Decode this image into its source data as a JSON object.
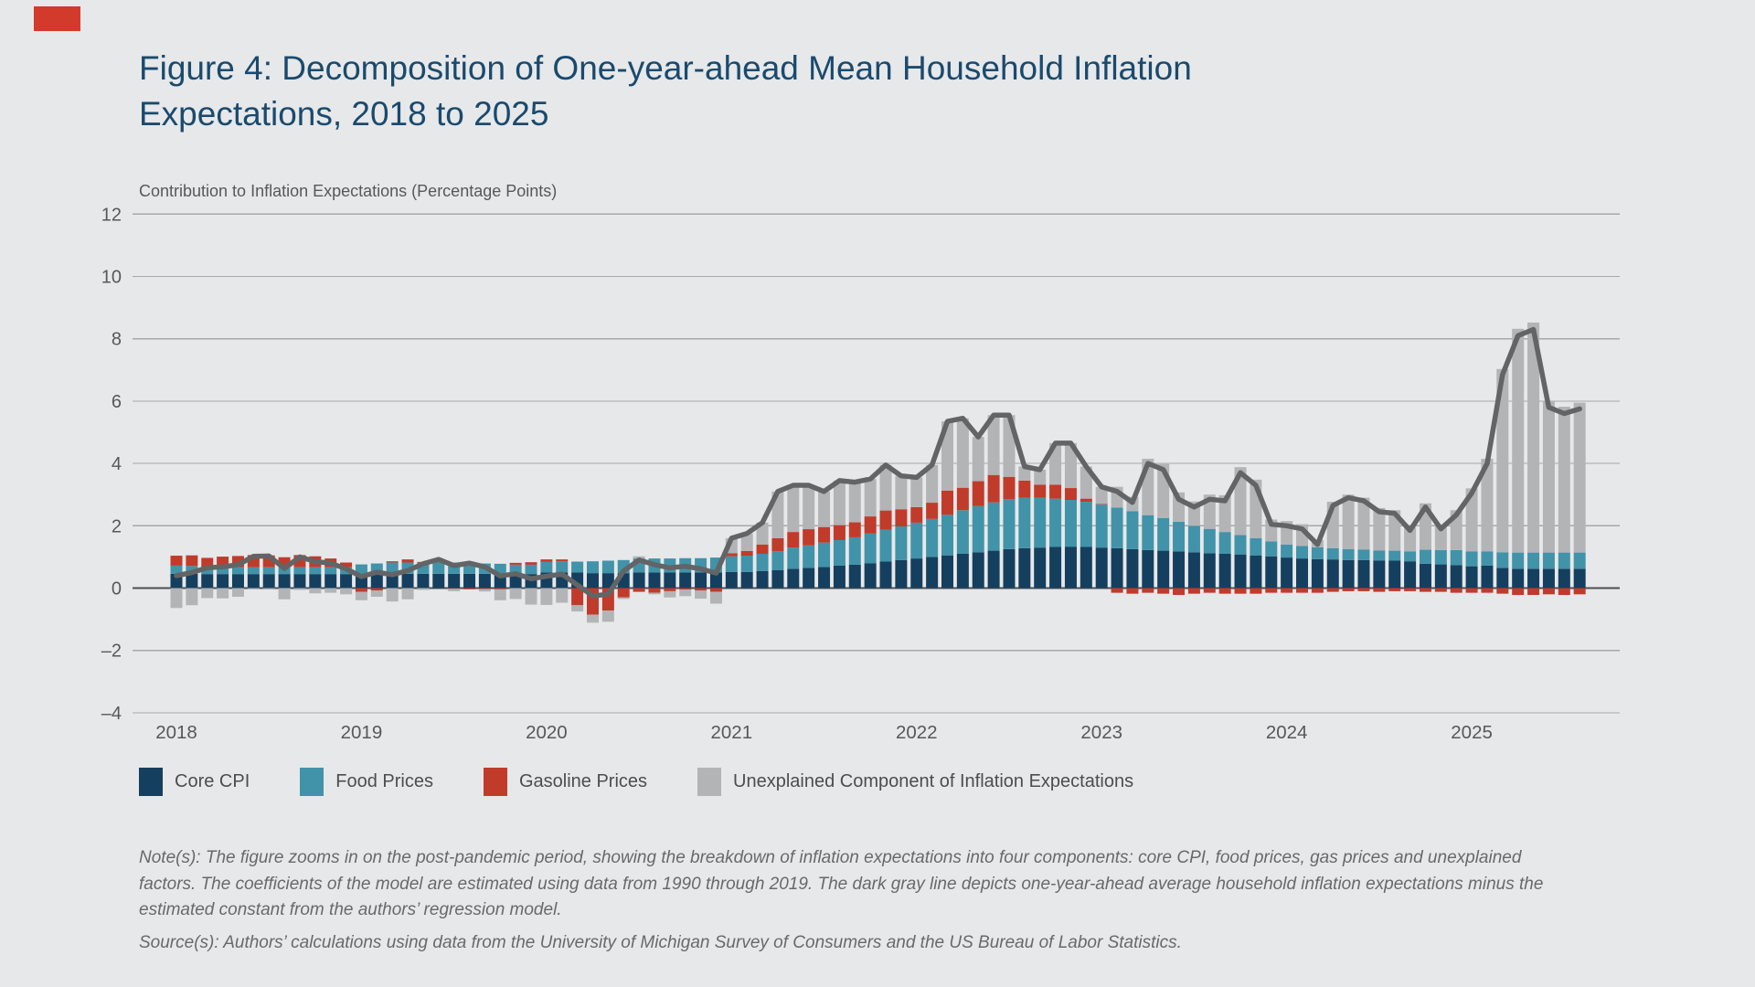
{
  "page": {
    "background": "#e7e8e9"
  },
  "brand": {
    "mark": "red-rectangle-logo",
    "color": "#d23a2c"
  },
  "title": {
    "text": "Figure 4: Decomposition of One-year-ahead Mean Household Inflation Expectations, 2018 to 2025",
    "color": "#1a4a6e"
  },
  "subtitle": "Contribution to Inflation Expectations (Percentage Points)",
  "subtitle_color": "#57585a",
  "notes": {
    "note": "Note(s): The figure zooms in on the post-pandemic period, showing the breakdown of inflation expectations into four components: core CPI, food prices, gas prices and unexplained factors. The coefficients of the model are estimated using data from 1990 through 2019. The dark gray line depicts one-year-ahead average household inflation expectations minus the estimated constant from the authors’ regression model.",
    "source": "Source(s): Authors’ calculations using data from the University of Michigan Survey of Consumers and the US Bureau of Labor Statistics."
  },
  "chart_data": {
    "type": "bar",
    "subtype": "stacked-monthly-bars-with-total-line",
    "title": "Contribution to Inflation Expectations (Percentage Points)",
    "x_start": "2018-01",
    "x_end": "2025-08",
    "n_months": 92,
    "xtick_labels": [
      "2018",
      "2019",
      "2020",
      "2021",
      "2022",
      "2023",
      "2024",
      "2025"
    ],
    "ylim": [
      -4,
      12
    ],
    "yticks": [
      12,
      10,
      8,
      6,
      4,
      2,
      0,
      -2,
      -4
    ],
    "grid": true,
    "legend_position": "bottom",
    "axis_label_color": "#57585a",
    "gridline_color": "#a7a8aa",
    "zero_line_color": "#4e4f52",
    "series": [
      {
        "name": "Core CPI",
        "color": "#153f5f",
        "values": [
          0.46,
          0.46,
          0.45,
          0.45,
          0.45,
          0.45,
          0.45,
          0.45,
          0.45,
          0.45,
          0.45,
          0.45,
          0.46,
          0.46,
          0.46,
          0.46,
          0.46,
          0.46,
          0.46,
          0.46,
          0.46,
          0.46,
          0.45,
          0.45,
          0.5,
          0.5,
          0.5,
          0.48,
          0.48,
          0.48,
          0.5,
          0.5,
          0.5,
          0.5,
          0.5,
          0.5,
          0.52,
          0.52,
          0.55,
          0.58,
          0.62,
          0.65,
          0.68,
          0.72,
          0.75,
          0.8,
          0.85,
          0.9,
          0.95,
          1.0,
          1.05,
          1.1,
          1.15,
          1.2,
          1.25,
          1.28,
          1.3,
          1.32,
          1.33,
          1.32,
          1.3,
          1.28,
          1.25,
          1.22,
          1.2,
          1.18,
          1.15,
          1.12,
          1.1,
          1.08,
          1.05,
          1.02,
          0.98,
          0.95,
          0.93,
          0.92,
          0.9,
          0.9,
          0.88,
          0.88,
          0.86,
          0.78,
          0.76,
          0.74,
          0.7,
          0.72,
          0.65,
          0.62,
          0.62,
          0.62,
          0.62,
          0.62
        ]
      },
      {
        "name": "Food Prices",
        "color": "#4193a9",
        "values": [
          0.26,
          0.25,
          0.22,
          0.22,
          0.22,
          0.22,
          0.22,
          0.22,
          0.22,
          0.22,
          0.22,
          0.22,
          0.3,
          0.33,
          0.36,
          0.36,
          0.36,
          0.38,
          0.36,
          0.35,
          0.33,
          0.32,
          0.3,
          0.3,
          0.35,
          0.36,
          0.35,
          0.38,
          0.4,
          0.42,
          0.45,
          0.45,
          0.45,
          0.46,
          0.46,
          0.48,
          0.5,
          0.52,
          0.55,
          0.6,
          0.68,
          0.72,
          0.78,
          0.82,
          0.88,
          0.95,
          1.02,
          1.08,
          1.15,
          1.22,
          1.3,
          1.4,
          1.48,
          1.55,
          1.6,
          1.62,
          1.6,
          1.55,
          1.5,
          1.45,
          1.38,
          1.3,
          1.22,
          1.12,
          1.05,
          0.95,
          0.85,
          0.78,
          0.7,
          0.62,
          0.55,
          0.48,
          0.42,
          0.4,
          0.38,
          0.36,
          0.35,
          0.34,
          0.33,
          0.32,
          0.32,
          0.45,
          0.46,
          0.48,
          0.48,
          0.46,
          0.5,
          0.52,
          0.52,
          0.52,
          0.52,
          0.52
        ]
      },
      {
        "name": "Gasoline Prices",
        "color": "#c13b2b",
        "values": [
          0.32,
          0.34,
          0.3,
          0.34,
          0.36,
          0.39,
          0.38,
          0.32,
          0.39,
          0.35,
          0.28,
          0.15,
          -0.12,
          -0.08,
          0.04,
          0.1,
          0.02,
          0.0,
          -0.02,
          -0.04,
          -0.03,
          -0.04,
          0.06,
          0.08,
          0.07,
          0.06,
          -0.55,
          -0.85,
          -0.72,
          -0.3,
          -0.12,
          -0.15,
          -0.1,
          -0.05,
          -0.08,
          -0.12,
          0.1,
          0.15,
          0.3,
          0.42,
          0.5,
          0.52,
          0.5,
          0.48,
          0.48,
          0.55,
          0.62,
          0.55,
          0.5,
          0.52,
          0.78,
          0.72,
          0.8,
          0.88,
          0.72,
          0.55,
          0.42,
          0.45,
          0.38,
          0.1,
          0.02,
          -0.15,
          -0.18,
          -0.15,
          -0.18,
          -0.22,
          -0.18,
          -0.15,
          -0.18,
          -0.18,
          -0.18,
          -0.15,
          -0.15,
          -0.15,
          -0.15,
          -0.12,
          -0.1,
          -0.1,
          -0.12,
          -0.1,
          -0.1,
          -0.12,
          -0.12,
          -0.15,
          -0.15,
          -0.15,
          -0.18,
          -0.22,
          -0.22,
          -0.2,
          -0.22,
          -0.2
        ]
      },
      {
        "name": "Unexplained Component of Inflation Expectations",
        "color": "#b3b4b6",
        "values": [
          -0.64,
          -0.55,
          -0.32,
          -0.33,
          -0.28,
          -0.04,
          -0.02,
          -0.36,
          -0.06,
          -0.17,
          -0.15,
          -0.2,
          -0.27,
          -0.2,
          -0.43,
          -0.36,
          -0.06,
          0.08,
          -0.08,
          0.03,
          -0.08,
          -0.35,
          -0.35,
          -0.53,
          -0.54,
          -0.47,
          -0.2,
          -0.26,
          -0.36,
          -0.05,
          0.07,
          -0.05,
          -0.2,
          -0.21,
          -0.26,
          -0.38,
          0.48,
          0.56,
          0.7,
          1.5,
          1.5,
          1.41,
          1.14,
          1.43,
          1.29,
          1.2,
          1.46,
          1.07,
          0.95,
          1.21,
          2.22,
          2.23,
          1.42,
          1.92,
          1.98,
          0.45,
          0.48,
          1.33,
          1.44,
          1.03,
          0.55,
          0.67,
          0.46,
          1.81,
          1.73,
          0.94,
          0.78,
          1.1,
          1.18,
          2.18,
          1.88,
          0.7,
          0.75,
          0.7,
          0.24,
          1.49,
          1.75,
          1.66,
          1.36,
          1.3,
          0.77,
          1.49,
          0.8,
          1.28,
          2.02,
          2.97,
          5.88,
          7.18,
          7.38,
          4.86,
          4.68,
          4.81
        ]
      }
    ],
    "line": {
      "name": "One-year-ahead average household inflation expectations minus estimated constant",
      "color": "#636466",
      "values": [
        0.4,
        0.5,
        0.65,
        0.68,
        0.75,
        1.02,
        1.03,
        0.63,
        1.0,
        0.85,
        0.8,
        0.62,
        0.37,
        0.51,
        0.43,
        0.56,
        0.78,
        0.92,
        0.72,
        0.8,
        0.68,
        0.39,
        0.46,
        0.3,
        0.38,
        0.45,
        0.1,
        -0.25,
        -0.2,
        0.55,
        0.9,
        0.75,
        0.65,
        0.7,
        0.62,
        0.48,
        1.6,
        1.75,
        2.1,
        3.1,
        3.3,
        3.3,
        3.1,
        3.45,
        3.4,
        3.5,
        3.95,
        3.6,
        3.55,
        3.95,
        5.35,
        5.45,
        4.85,
        5.55,
        5.55,
        3.9,
        3.8,
        4.65,
        4.65,
        3.9,
        3.25,
        3.1,
        2.75,
        4.0,
        3.8,
        2.85,
        2.6,
        2.85,
        2.8,
        3.7,
        3.3,
        2.05,
        2.0,
        1.9,
        1.4,
        2.65,
        2.9,
        2.8,
        2.45,
        2.4,
        1.85,
        2.6,
        1.9,
        2.35,
        3.05,
        4.0,
        6.85,
        8.1,
        8.3,
        5.8,
        5.6,
        5.75
      ]
    }
  },
  "legend": [
    {
      "label": "Core CPI",
      "color": "#153f5f"
    },
    {
      "label": "Food Prices",
      "color": "#4193a9"
    },
    {
      "label": "Gasoline Prices",
      "color": "#c13b2b"
    },
    {
      "label": "Unexplained Component of Inflation Expectations",
      "color": "#b3b4b6"
    }
  ]
}
